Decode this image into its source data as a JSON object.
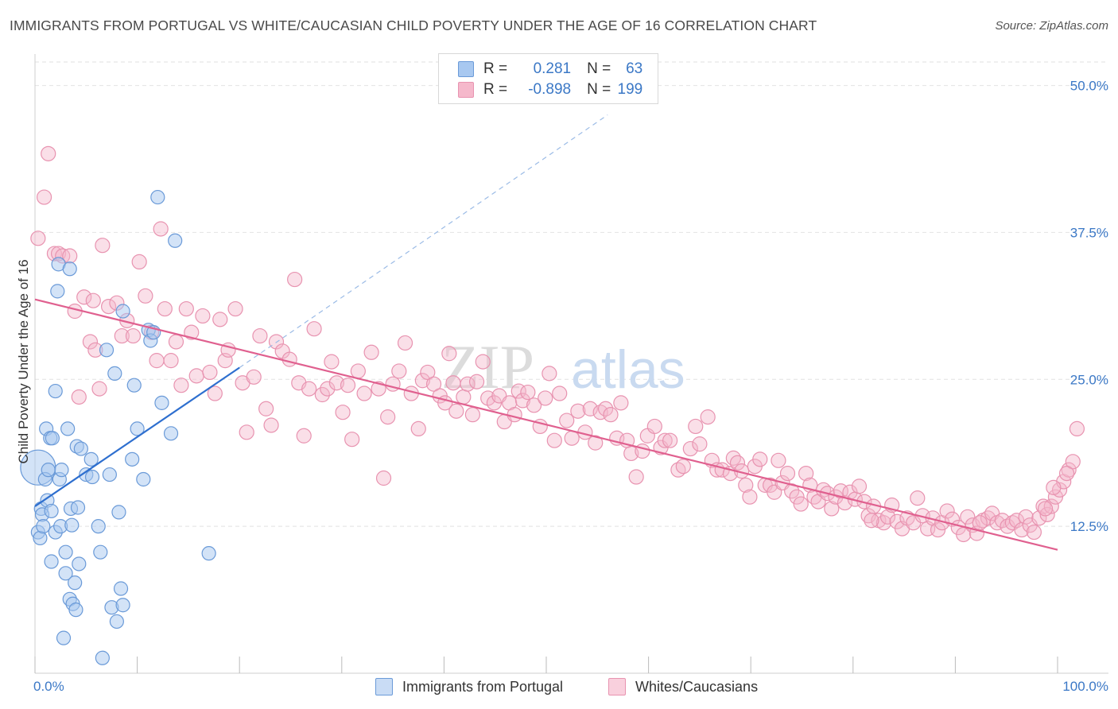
{
  "header": {
    "title": "IMMIGRANTS FROM PORTUGAL VS WHITE/CAUCASIAN CHILD POVERTY UNDER THE AGE OF 16 CORRELATION CHART",
    "source": "Source: ZipAtlas.com"
  },
  "watermark": {
    "zip": "ZIP",
    "atlas": "atlas"
  },
  "legend": {
    "r_label": "R =",
    "n_label": "N =",
    "series1": {
      "r": "0.281",
      "n": "63"
    },
    "series2": {
      "r": "-0.898",
      "n": "199"
    }
  },
  "colors": {
    "blue_fill": "#a8c8f0",
    "blue_stroke": "#6a9ad8",
    "blue_line": "#2e6fcf",
    "pink_fill": "#f5b8cb",
    "pink_stroke": "#e893b0",
    "pink_line": "#e0608f",
    "tick_label": "#3b78c6"
  },
  "chart_data": {
    "type": "scatter",
    "title": "IMMIGRANTS FROM PORTUGAL VS WHITE/CAUCASIAN CHILD POVERTY UNDER THE AGE OF 16 CORRELATION CHART",
    "xlabel": "",
    "ylabel": "Child Poverty Under the Age of 16",
    "xlim": [
      0,
      100
    ],
    "ylim": [
      0,
      52
    ],
    "x_tick_labels": [
      "0.0%",
      "100.0%"
    ],
    "y_ticks": [
      12.5,
      25.0,
      37.5,
      50.0
    ],
    "y_tick_labels": [
      "12.5%",
      "25.0%",
      "37.5%",
      "50.0%"
    ],
    "x_minor_ticks": [
      0,
      10,
      20,
      30,
      40,
      50,
      60,
      70,
      80,
      90,
      100
    ],
    "grid": "horizontal dashed",
    "legend_position": "top-center",
    "series": [
      {
        "name": "Immigrants from Portugal",
        "r": 0.281,
        "n": 63,
        "trend": {
          "x": [
            0,
            20
          ],
          "y": [
            14.2,
            26.0
          ]
        },
        "trend_extension": {
          "x": [
            20,
            56
          ],
          "y": [
            26.0,
            47.5
          ]
        },
        "points": [
          [
            0.3,
            17.5
          ],
          [
            0.3,
            12.0
          ],
          [
            0.5,
            11.5
          ],
          [
            0.6,
            14.0
          ],
          [
            0.7,
            13.5
          ],
          [
            0.8,
            12.5
          ],
          [
            1.0,
            16.5
          ],
          [
            1.1,
            20.8
          ],
          [
            1.2,
            14.7
          ],
          [
            1.3,
            17.3
          ],
          [
            1.5,
            20.0
          ],
          [
            1.6,
            13.8
          ],
          [
            1.6,
            9.5
          ],
          [
            1.7,
            20.0
          ],
          [
            2.0,
            12.0
          ],
          [
            2.0,
            24.0
          ],
          [
            2.2,
            32.5
          ],
          [
            2.3,
            34.8
          ],
          [
            2.4,
            16.5
          ],
          [
            2.5,
            12.5
          ],
          [
            2.6,
            17.3
          ],
          [
            2.8,
            3.0
          ],
          [
            3.0,
            10.3
          ],
          [
            3.0,
            8.5
          ],
          [
            3.2,
            20.8
          ],
          [
            3.4,
            34.4
          ],
          [
            3.4,
            6.3
          ],
          [
            3.5,
            14.0
          ],
          [
            3.6,
            12.6
          ],
          [
            3.7,
            5.9
          ],
          [
            3.9,
            7.7
          ],
          [
            4.0,
            5.4
          ],
          [
            4.1,
            19.3
          ],
          [
            4.2,
            14.1
          ],
          [
            4.3,
            9.3
          ],
          [
            4.5,
            19.1
          ],
          [
            5.0,
            16.9
          ],
          [
            5.5,
            18.2
          ],
          [
            5.6,
            16.7
          ],
          [
            6.2,
            12.5
          ],
          [
            6.4,
            10.3
          ],
          [
            6.6,
            1.3
          ],
          [
            7.0,
            27.5
          ],
          [
            7.3,
            16.9
          ],
          [
            7.5,
            5.6
          ],
          [
            7.8,
            25.5
          ],
          [
            8.0,
            4.4
          ],
          [
            8.2,
            13.7
          ],
          [
            8.4,
            7.2
          ],
          [
            8.6,
            30.8
          ],
          [
            8.6,
            5.8
          ],
          [
            9.5,
            18.2
          ],
          [
            9.7,
            24.5
          ],
          [
            10.0,
            20.8
          ],
          [
            10.6,
            16.5
          ],
          [
            11.1,
            29.2
          ],
          [
            11.3,
            28.3
          ],
          [
            11.6,
            29.0
          ],
          [
            12.0,
            40.5
          ],
          [
            12.4,
            23.0
          ],
          [
            13.3,
            20.4
          ],
          [
            13.7,
            36.8
          ],
          [
            17.0,
            10.2
          ]
        ]
      },
      {
        "name": "Whites/Caucasians",
        "r": -0.898,
        "n": 199,
        "trend": {
          "x": [
            0,
            100
          ],
          "y": [
            31.8,
            10.5
          ]
        },
        "points": [
          [
            0.3,
            37.0
          ],
          [
            0.9,
            40.5
          ],
          [
            1.3,
            44.2
          ],
          [
            1.9,
            35.7
          ],
          [
            2.3,
            35.7
          ],
          [
            2.7,
            35.5
          ],
          [
            3.4,
            35.5
          ],
          [
            3.9,
            30.8
          ],
          [
            4.3,
            23.5
          ],
          [
            4.8,
            32.0
          ],
          [
            5.4,
            28.2
          ],
          [
            5.7,
            31.7
          ],
          [
            5.9,
            27.5
          ],
          [
            6.3,
            24.2
          ],
          [
            6.6,
            36.4
          ],
          [
            7.2,
            31.2
          ],
          [
            8.0,
            31.5
          ],
          [
            8.5,
            28.7
          ],
          [
            9.0,
            30.0
          ],
          [
            9.6,
            28.7
          ],
          [
            10.2,
            35.0
          ],
          [
            10.8,
            32.1
          ],
          [
            11.4,
            29.0
          ],
          [
            11.9,
            26.6
          ],
          [
            12.3,
            37.8
          ],
          [
            12.7,
            31.0
          ],
          [
            13.3,
            26.6
          ],
          [
            13.8,
            28.2
          ],
          [
            14.3,
            24.5
          ],
          [
            14.8,
            31.0
          ],
          [
            15.3,
            29.0
          ],
          [
            15.8,
            25.3
          ],
          [
            16.4,
            30.4
          ],
          [
            17.1,
            25.6
          ],
          [
            17.6,
            23.8
          ],
          [
            18.1,
            30.1
          ],
          [
            18.6,
            26.6
          ],
          [
            18.9,
            27.5
          ],
          [
            19.6,
            31.0
          ],
          [
            20.3,
            24.7
          ],
          [
            20.7,
            20.5
          ],
          [
            21.4,
            25.2
          ],
          [
            22.0,
            28.7
          ],
          [
            22.6,
            22.5
          ],
          [
            23.1,
            21.1
          ],
          [
            23.6,
            28.2
          ],
          [
            24.2,
            27.4
          ],
          [
            24.9,
            26.7
          ],
          [
            25.4,
            33.5
          ],
          [
            25.8,
            24.7
          ],
          [
            26.3,
            20.2
          ],
          [
            26.8,
            24.2
          ],
          [
            27.3,
            29.3
          ],
          [
            28.1,
            23.7
          ],
          [
            28.6,
            24.2
          ],
          [
            29.0,
            26.5
          ],
          [
            29.5,
            24.7
          ],
          [
            30.1,
            22.2
          ],
          [
            30.6,
            24.5
          ],
          [
            31.0,
            19.9
          ],
          [
            31.6,
            25.7
          ],
          [
            32.2,
            23.8
          ],
          [
            32.9,
            27.3
          ],
          [
            33.6,
            24.2
          ],
          [
            34.1,
            16.6
          ],
          [
            34.5,
            21.8
          ],
          [
            35.0,
            24.6
          ],
          [
            35.6,
            25.7
          ],
          [
            36.2,
            28.1
          ],
          [
            36.8,
            23.8
          ],
          [
            37.5,
            20.8
          ],
          [
            37.9,
            24.9
          ],
          [
            38.4,
            25.6
          ],
          [
            39.0,
            24.6
          ],
          [
            39.6,
            23.6
          ],
          [
            40.1,
            23.0
          ],
          [
            40.5,
            27.2
          ],
          [
            40.9,
            24.7
          ],
          [
            41.2,
            22.3
          ],
          [
            41.9,
            23.5
          ],
          [
            42.3,
            24.6
          ],
          [
            42.8,
            22.0
          ],
          [
            43.2,
            24.8
          ],
          [
            43.8,
            26.5
          ],
          [
            44.3,
            23.4
          ],
          [
            44.9,
            23.0
          ],
          [
            45.4,
            23.6
          ],
          [
            45.9,
            21.4
          ],
          [
            46.4,
            23.0
          ],
          [
            46.9,
            22.0
          ],
          [
            47.3,
            24.0
          ],
          [
            47.7,
            23.2
          ],
          [
            48.2,
            23.9
          ],
          [
            48.8,
            22.8
          ],
          [
            49.4,
            21.0
          ],
          [
            49.9,
            23.4
          ],
          [
            50.3,
            25.5
          ],
          [
            50.8,
            19.8
          ],
          [
            51.3,
            23.8
          ],
          [
            52.0,
            21.5
          ],
          [
            52.5,
            20.0
          ],
          [
            53.1,
            22.3
          ],
          [
            53.8,
            20.5
          ],
          [
            54.3,
            22.5
          ],
          [
            54.8,
            19.6
          ],
          [
            55.3,
            22.2
          ],
          [
            55.8,
            22.5
          ],
          [
            56.3,
            22.0
          ],
          [
            56.9,
            20.0
          ],
          [
            57.3,
            23.0
          ],
          [
            57.9,
            19.8
          ],
          [
            58.3,
            18.7
          ],
          [
            58.8,
            16.7
          ],
          [
            59.4,
            18.9
          ],
          [
            59.9,
            20.2
          ],
          [
            60.6,
            21.0
          ],
          [
            61.2,
            19.2
          ],
          [
            61.6,
            19.8
          ],
          [
            62.1,
            19.8
          ],
          [
            62.9,
            17.3
          ],
          [
            63.4,
            17.6
          ],
          [
            64.1,
            19.1
          ],
          [
            64.6,
            21.0
          ],
          [
            65.0,
            19.5
          ],
          [
            65.8,
            21.8
          ],
          [
            66.2,
            18.1
          ],
          [
            66.7,
            17.3
          ],
          [
            67.2,
            17.3
          ],
          [
            68.0,
            17.0
          ],
          [
            68.3,
            18.3
          ],
          [
            68.7,
            17.9
          ],
          [
            69.1,
            17.2
          ],
          [
            69.5,
            16.0
          ],
          [
            69.9,
            15.0
          ],
          [
            70.4,
            17.6
          ],
          [
            70.9,
            18.2
          ],
          [
            71.4,
            16.0
          ],
          [
            71.9,
            16.0
          ],
          [
            72.3,
            15.4
          ],
          [
            72.7,
            18.1
          ],
          [
            73.1,
            16.2
          ],
          [
            73.6,
            17.0
          ],
          [
            74.0,
            15.5
          ],
          [
            74.5,
            15.0
          ],
          [
            74.9,
            14.4
          ],
          [
            75.4,
            17.0
          ],
          [
            75.8,
            16.0
          ],
          [
            76.2,
            15.0
          ],
          [
            76.6,
            14.6
          ],
          [
            77.1,
            15.6
          ],
          [
            77.5,
            15.3
          ],
          [
            77.9,
            14.0
          ],
          [
            78.3,
            15.0
          ],
          [
            78.8,
            15.5
          ],
          [
            79.2,
            14.5
          ],
          [
            79.7,
            15.4
          ],
          [
            80.2,
            14.8
          ],
          [
            80.6,
            15.9
          ],
          [
            81.1,
            14.6
          ],
          [
            81.5,
            13.4
          ],
          [
            82.0,
            14.2
          ],
          [
            82.5,
            13.0
          ],
          [
            83.0,
            12.8
          ],
          [
            83.4,
            13.3
          ],
          [
            83.8,
            14.3
          ],
          [
            84.3,
            12.9
          ],
          [
            84.8,
            12.3
          ],
          [
            85.3,
            13.2
          ],
          [
            85.9,
            12.8
          ],
          [
            86.3,
            14.9
          ],
          [
            86.8,
            13.4
          ],
          [
            87.3,
            12.3
          ],
          [
            87.8,
            13.2
          ],
          [
            88.3,
            12.2
          ],
          [
            88.7,
            12.8
          ],
          [
            89.2,
            13.8
          ],
          [
            89.7,
            13.1
          ],
          [
            90.3,
            12.4
          ],
          [
            90.8,
            11.8
          ],
          [
            91.2,
            13.3
          ],
          [
            91.7,
            12.6
          ],
          [
            92.1,
            11.9
          ],
          [
            92.7,
            13.0
          ],
          [
            93.2,
            13.2
          ],
          [
            93.6,
            13.6
          ],
          [
            94.1,
            12.8
          ],
          [
            94.6,
            13.0
          ],
          [
            95.1,
            12.5
          ],
          [
            95.6,
            12.8
          ],
          [
            96.0,
            13.0
          ],
          [
            96.5,
            12.2
          ],
          [
            96.9,
            13.3
          ],
          [
            97.3,
            12.6
          ],
          [
            97.7,
            12.0
          ],
          [
            98.2,
            13.2
          ],
          [
            98.6,
            14.2
          ],
          [
            99.0,
            13.5
          ],
          [
            99.4,
            14.2
          ],
          [
            99.8,
            15.0
          ],
          [
            100.2,
            15.6
          ],
          [
            100.6,
            16.3
          ],
          [
            101.1,
            17.3
          ],
          [
            101.5,
            18.0
          ],
          [
            101.9,
            20.8
          ],
          [
            98.8,
            14.0
          ],
          [
            99.6,
            15.8
          ],
          [
            100.9,
            17.0
          ],
          [
            92.4,
            12.8
          ],
          [
            81.8,
            13.0
          ]
        ]
      }
    ]
  },
  "bottom_legend": {
    "series1_label": "Immigrants from Portugal",
    "series2_label": "Whites/Caucasians"
  }
}
